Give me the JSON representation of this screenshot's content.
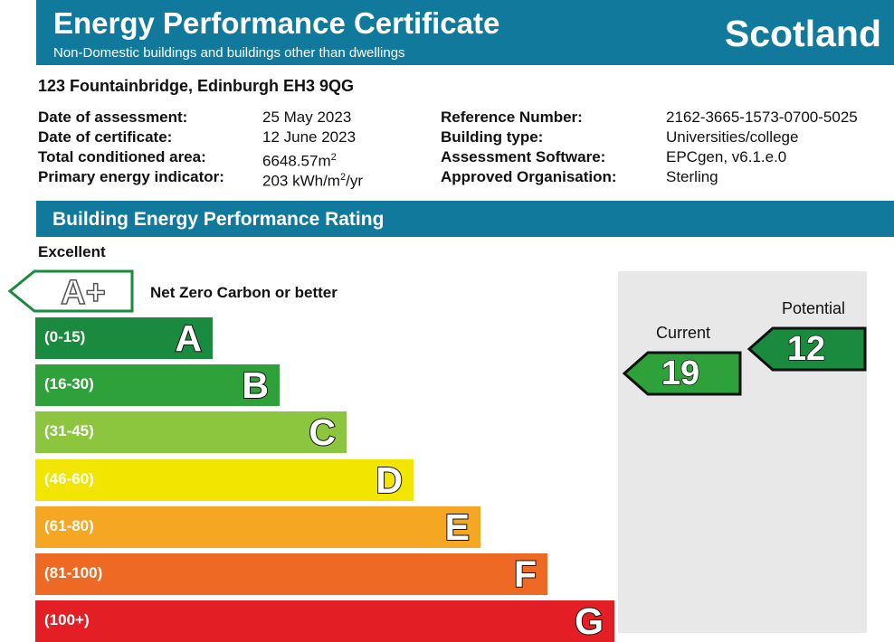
{
  "header": {
    "title": "Energy Performance Certificate",
    "subtitle": "Non-Domestic buildings and buildings other than dwellings",
    "region": "Scotland"
  },
  "address": "123 Fountainbridge, Edinburgh EH3 9QG",
  "details_left": {
    "labels": [
      "Date of assessment:",
      "Date of certificate:",
      "Total conditioned area:",
      "Primary energy indicator:"
    ],
    "values": {
      "assessment": "25 May 2023",
      "certificate": "12 June 2023",
      "area_number": "6648.57m",
      "area_superscript": "2",
      "energy_prefix": "203 kWh/m",
      "energy_superscript": "2",
      "energy_suffix": "/yr"
    }
  },
  "details_right": {
    "labels": [
      "Reference Number:",
      "Building type:",
      "Assessment Software:",
      "Approved Organisation:"
    ],
    "values": [
      "2162-3665-1573-0700-5025",
      "Universities/college",
      "EPCgen, v6.1.e.0",
      "Sterling"
    ]
  },
  "section_title": "Building Energy Performance Rating",
  "scale_top_label": "Excellent",
  "aplus": {
    "letter": "A+",
    "label": "Net Zero Carbon or better"
  },
  "bands": [
    {
      "letter": "A",
      "range": "(0-15)",
      "color": "#1a8a3e"
    },
    {
      "letter": "B",
      "range": "(16-30)",
      "color": "#2ea13a"
    },
    {
      "letter": "C",
      "range": "(31-45)",
      "color": "#8cc63f"
    },
    {
      "letter": "D",
      "range": "(46-60)",
      "color": "#f2e600"
    },
    {
      "letter": "E",
      "range": "(61-80)",
      "color": "#f5a623"
    },
    {
      "letter": "F",
      "range": "(81-100)",
      "color": "#ee6a24"
    },
    {
      "letter": "G",
      "range": "(100+)",
      "color": "#e31e24"
    }
  ],
  "current": {
    "label": "Current",
    "value": "19",
    "color": "#2ea13a"
  },
  "potential": {
    "label": "Potential",
    "value": "12",
    "color": "#1a8a3e"
  }
}
